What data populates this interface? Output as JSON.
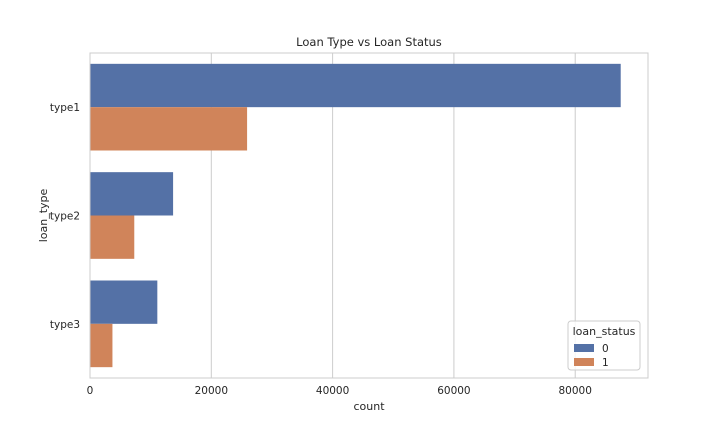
{
  "chart_data": {
    "type": "bar",
    "orientation": "horizontal",
    "title": "Loan Type vs Loan Status",
    "xlabel": "count",
    "ylabel": "loan_type",
    "categories": [
      "type1",
      "type2",
      "type3"
    ],
    "series": [
      {
        "name": "0",
        "color": "#5471a6",
        "values": [
          87500,
          13700,
          11100
        ]
      },
      {
        "name": "1",
        "color": "#d0845a",
        "values": [
          25900,
          7300,
          3700
        ]
      }
    ],
    "xlim": [
      0,
      92000
    ],
    "xticks": [
      0,
      20000,
      40000,
      60000,
      80000
    ],
    "grid": true,
    "legend": {
      "title": "loan_status",
      "position": "lower-right"
    }
  }
}
